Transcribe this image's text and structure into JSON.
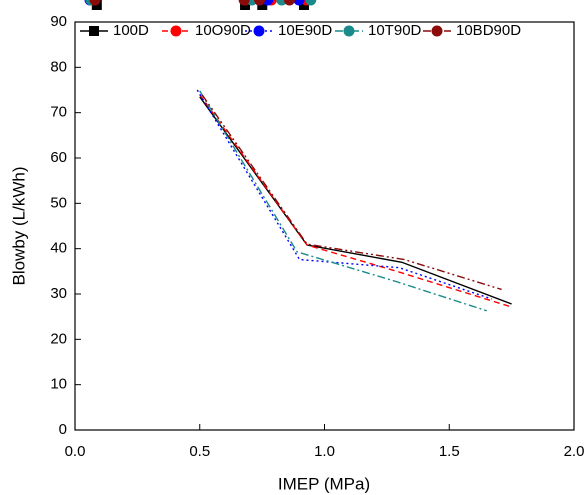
{
  "chart_data": {
    "type": "line",
    "x_label": "IMEP (MPa)",
    "y_label": "Blowby (L/kWh)",
    "xlim": [
      0,
      2
    ],
    "ylim": [
      0,
      90
    ],
    "xticks": [
      {
        "value": 0,
        "label": "0.0"
      },
      0.5,
      {
        "value": 1,
        "label": "1.0"
      },
      1.5,
      {
        "value": 2,
        "label": "2.0"
      }
    ],
    "yticks": [
      0,
      10,
      20,
      30,
      40,
      50,
      60,
      70,
      80,
      90
    ],
    "legend": "top",
    "series": [
      {
        "name": "100D",
        "color": "#000000",
        "marker": "square",
        "line_style": "solid",
        "x": [
          0.5,
          0.93,
          1.31,
          1.75
        ],
        "values": [
          73.5,
          40.8,
          37,
          27.8
        ]
      },
      {
        "name": "10O90D",
        "color": "#ff0000",
        "marker": "circle",
        "line_style": "dash",
        "x": [
          0.5,
          0.93,
          1.29,
          1.74
        ],
        "values": [
          74,
          40.8,
          35,
          27.3
        ]
      },
      {
        "name": "10E90D",
        "color": "#0000ff",
        "marker": "circle",
        "line_style": "dot",
        "x": [
          0.49,
          0.9,
          1.3,
          1.67
        ],
        "values": [
          75,
          37.6,
          35.8,
          28.9
        ]
      },
      {
        "name": "10T90D",
        "color": "#1b8a8a",
        "marker": "circle",
        "line_style": "dashdot",
        "x": [
          0.5,
          0.89,
          1.29,
          1.65
        ],
        "values": [
          74.8,
          39.3,
          32.7,
          26.3
        ]
      },
      {
        "name": "10BD90D",
        "color": "#8b0a0a",
        "marker": "circle",
        "line_style": "dashdotdot",
        "x": [
          0.51,
          0.93,
          1.32,
          1.71
        ],
        "values": [
          73.9,
          41,
          37.6,
          31
        ]
      }
    ]
  }
}
